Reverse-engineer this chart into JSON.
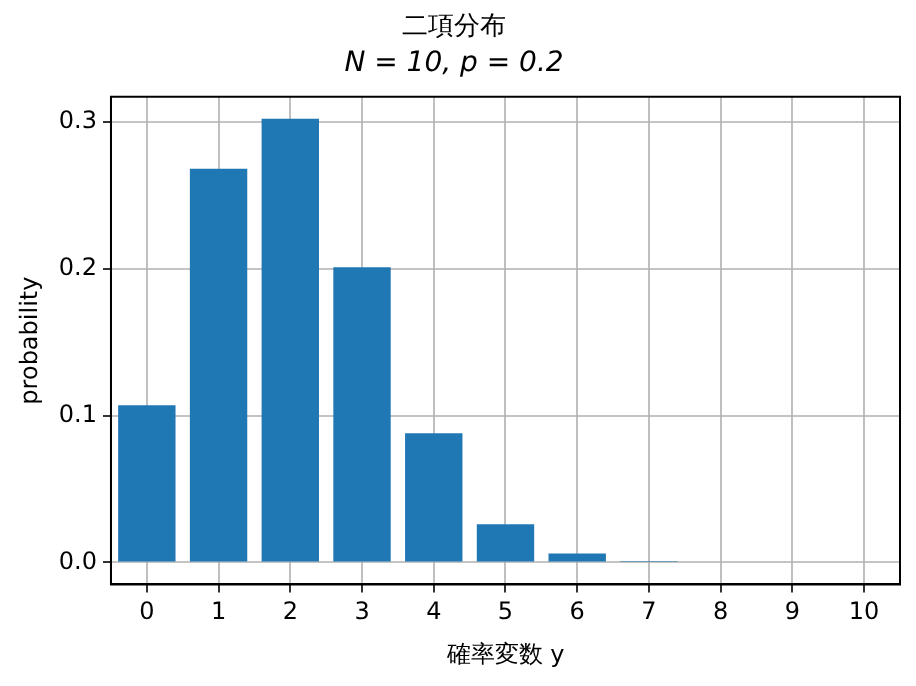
{
  "chart_data": {
    "type": "bar",
    "title": "二項分布",
    "subtitle": "N = 10, p = 0.2",
    "xlabel": "確率変数 y",
    "ylabel": "probability",
    "categories": [
      "0",
      "1",
      "2",
      "3",
      "4",
      "5",
      "6",
      "7",
      "8",
      "9",
      "10"
    ],
    "values": [
      0.107,
      0.268,
      0.302,
      0.201,
      0.088,
      0.026,
      0.006,
      0.001,
      0,
      0,
      0
    ],
    "color": "#1f77b4",
    "ylim": [
      -0.015,
      0.317
    ],
    "yticks": [
      {
        "value": 0,
        "label": "0.0"
      },
      0.1,
      0.2,
      0.3
    ],
    "grid": true
  }
}
